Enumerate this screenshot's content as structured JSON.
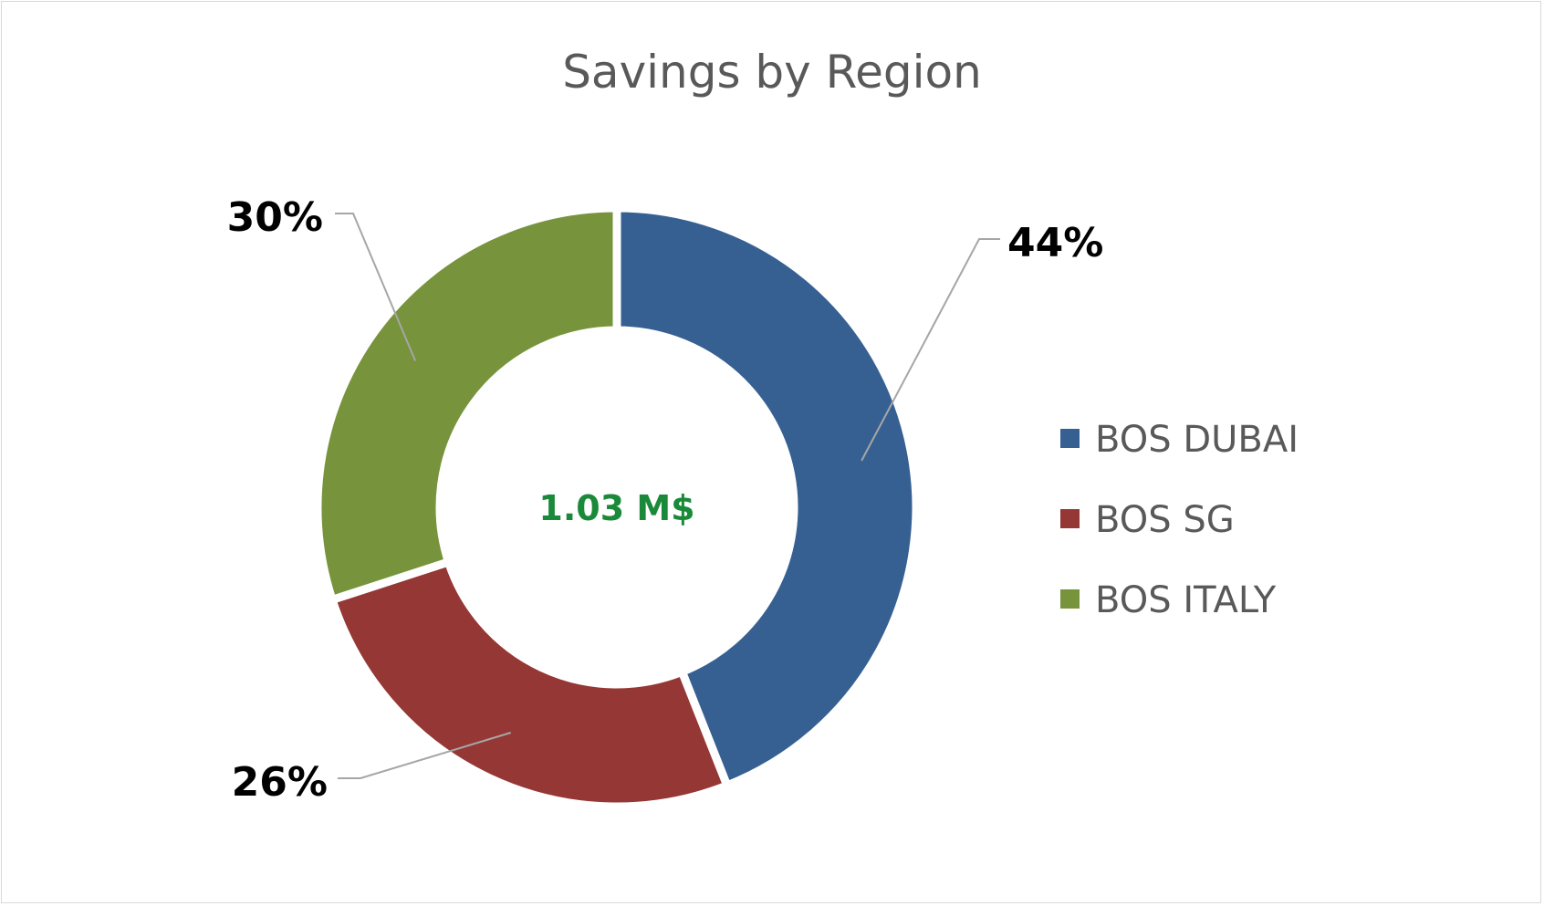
{
  "chart_data": {
    "type": "pie",
    "title": "Savings by Region",
    "center_label": "1.03 M$",
    "categories": [
      "BOS DUBAI",
      "BOS SG",
      "BOS ITALY"
    ],
    "values": [
      44,
      26,
      30
    ],
    "data_labels": [
      "44%",
      "26%",
      "30%"
    ],
    "colors": [
      "#376092",
      "#953735",
      "#77933c"
    ],
    "legend": {
      "position": "right",
      "entries": [
        "BOS DUBAI",
        "BOS SG",
        "BOS ITALY"
      ]
    }
  }
}
